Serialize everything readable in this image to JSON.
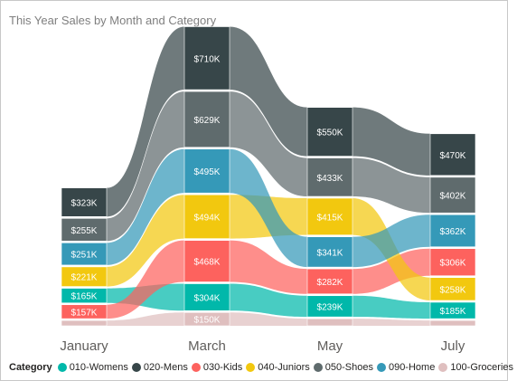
{
  "chart_data": {
    "type": "ribbon",
    "title": "This Year Sales by Month and Category",
    "categories": [
      "January",
      "March",
      "May",
      "July"
    ],
    "legend_title": "Category",
    "legend_position": "bottom-left",
    "series": [
      {
        "name": "010-Womens",
        "color": "#01b8aa",
        "values": [
          165,
          304,
          239,
          185
        ],
        "labels": [
          "$165K",
          "$304K",
          "$239K",
          "$185K"
        ]
      },
      {
        "name": "020-Mens",
        "color": "#374649",
        "values": [
          323,
          710,
          550,
          470
        ],
        "labels": [
          "$323K",
          "$710K",
          "$550K",
          "$470K"
        ]
      },
      {
        "name": "030-Kids",
        "color": "#fd625e",
        "values": [
          157,
          468,
          282,
          306
        ],
        "labels": [
          "$157K",
          "$468K",
          "$282K",
          "$306K"
        ]
      },
      {
        "name": "040-Juniors",
        "color": "#f2c80f",
        "values": [
          221,
          494,
          415,
          258
        ],
        "labels": [
          "$221K",
          "$494K",
          "$415K",
          "$258K"
        ]
      },
      {
        "name": "050-Shoes",
        "color": "#5f6b6d",
        "values": [
          255,
          629,
          433,
          402
        ],
        "labels": [
          "$255K",
          "$629K",
          "$433K",
          "$402K"
        ]
      },
      {
        "name": "090-Home",
        "color": "#3599b8",
        "values": [
          251,
          495,
          341,
          362
        ],
        "labels": [
          "$251K",
          "$495K",
          "$341K",
          "$362K"
        ]
      },
      {
        "name": "100-Groceries",
        "color": "#dfbfbf",
        "values": [
          60,
          150,
          80,
          60
        ],
        "labels": [
          "",
          "$150K",
          "",
          ""
        ]
      }
    ]
  }
}
